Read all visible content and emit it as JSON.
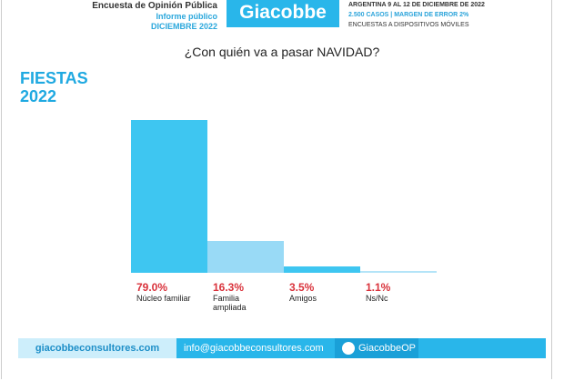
{
  "header": {
    "survey": "Encuesta de Opinión Pública",
    "report": "Informe público",
    "date": "DICIEMBRE 2022",
    "logo": "Giacobbe",
    "place_dates": "ARGENTINA 9 AL 12 DE DICIEMBRE DE 2022",
    "sample": "2.500 CASOS | MARGEN DE ERROR 2%",
    "method": "ENCUESTAS A DISPOSITIVOS MÓVILES"
  },
  "chart_data": {
    "type": "bar",
    "title": "¿Con quién va a pasar NAVIDAD?",
    "subtitle": "FIESTAS 2022",
    "categories": [
      "Núcleo familiar",
      "Familia ampliada",
      "Amigos",
      "Ns/Nc"
    ],
    "values": [
      79.0,
      16.3,
      3.5,
      1.1
    ],
    "value_labels": [
      "79.0%",
      "16.3%",
      "3.5%",
      "1.1%"
    ],
    "colors": [
      "#3ec6f1",
      "#99daf6",
      "#3ec6f1",
      "#b4e4f8"
    ]
  },
  "footer": {
    "web": "giacobbeconsultores.com",
    "email": "info@giacobbeconsultores.com",
    "twitter": "GiacobbeOP"
  }
}
